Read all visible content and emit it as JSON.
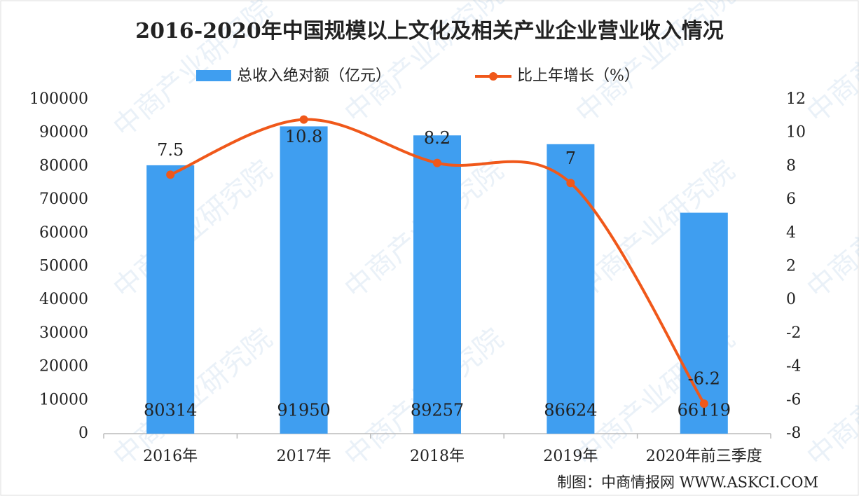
{
  "chart_data": {
    "type": "bar+line",
    "title": "2016-2020年中国规模以上文化及相关产业企业营业收入情况",
    "categories": [
      "2016年",
      "2017年",
      "2018年",
      "2019年",
      "2020年前三季度"
    ],
    "series": [
      {
        "name": "总收入绝对额（亿元）",
        "type": "bar",
        "color": "#3f9ef0",
        "values": [
          80314,
          91950,
          89257,
          86624,
          66119
        ]
      },
      {
        "name": "比上年增长（%）",
        "type": "line",
        "axis": "y2",
        "color": "#f0581a",
        "values": [
          7.5,
          10.8,
          8.2,
          7,
          -6.2
        ]
      }
    ],
    "ylim": [
      0,
      100000
    ],
    "yticks": [
      0,
      10000,
      20000,
      30000,
      40000,
      50000,
      60000,
      70000,
      80000,
      90000,
      100000
    ],
    "y2lim": [
      -8,
      12
    ],
    "y2ticks": [
      -8,
      -6,
      -4,
      -2,
      0,
      2,
      4,
      6,
      8,
      10,
      12
    ],
    "legend": "top",
    "source": "制图：中商情报网 WWW.ASKCI.COM",
    "watermark": "中商产业研究院"
  }
}
